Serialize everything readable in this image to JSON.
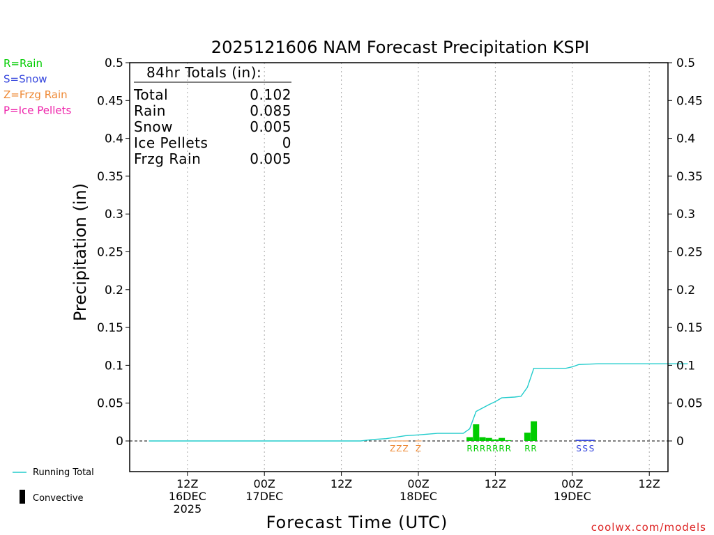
{
  "chart_data": {
    "type": "bar",
    "title": "2025121606 NAM Forecast Precipitation KSPI",
    "xlabel": "Forecast Time (UTC)",
    "ylabel": "Precipitation (in)",
    "ylim": [
      -0.04,
      0.5
    ],
    "y_ticks": [
      {
        "value": 0.5,
        "label": "0.5"
      },
      {
        "value": 0.45,
        "label": "0.45"
      },
      {
        "value": 0.4,
        "label": "0.4"
      },
      {
        "value": 0.35,
        "label": "0.35"
      },
      {
        "value": 0.3,
        "label": "0.3"
      },
      {
        "value": 0.25,
        "label": "0.25"
      },
      {
        "value": 0.2,
        "label": "0.2"
      },
      {
        "value": 0.15,
        "label": "0.15"
      },
      {
        "value": 0.1,
        "label": "0.1"
      },
      {
        "value": 0.05,
        "label": "0.05"
      },
      {
        "value": 0,
        "label": "0"
      }
    ],
    "xlim": [
      -3,
      84
    ],
    "x_ticks": [
      {
        "hour": 6,
        "lines": [
          "12Z",
          "16DEC",
          "2025"
        ]
      },
      {
        "hour": 18,
        "lines": [
          "00Z",
          "17DEC"
        ]
      },
      {
        "hour": 30,
        "lines": [
          "12Z"
        ]
      },
      {
        "hour": 42,
        "lines": [
          "00Z",
          "18DEC"
        ]
      },
      {
        "hour": 54,
        "lines": [
          "12Z"
        ]
      },
      {
        "hour": 66,
        "lines": [
          "00Z",
          "19DEC"
        ]
      },
      {
        "hour": 78,
        "lines": [
          "12Z"
        ]
      }
    ],
    "bars": [
      {
        "hour": 38,
        "value": 0.0005,
        "type": "Z"
      },
      {
        "hour": 39,
        "value": 0.0005,
        "type": "Z"
      },
      {
        "hour": 40,
        "value": 0.0005,
        "type": "Z"
      },
      {
        "hour": 42,
        "value": 0.0005,
        "type": "Z"
      },
      {
        "hour": 50,
        "value": 0.005,
        "type": "R"
      },
      {
        "hour": 51,
        "value": 0.022,
        "type": "R"
      },
      {
        "hour": 52,
        "value": 0.005,
        "type": "R"
      },
      {
        "hour": 53,
        "value": 0.004,
        "type": "R"
      },
      {
        "hour": 54,
        "value": 0.002,
        "type": "R"
      },
      {
        "hour": 55,
        "value": 0.004,
        "type": "R"
      },
      {
        "hour": 56,
        "value": 0.001,
        "type": "R"
      },
      {
        "hour": 59,
        "value": 0.011,
        "type": "R"
      },
      {
        "hour": 60,
        "value": 0.026,
        "type": "R"
      },
      {
        "hour": 67,
        "value": 0.0015,
        "type": "S"
      },
      {
        "hour": 68,
        "value": 0.0015,
        "type": "S"
      },
      {
        "hour": 69,
        "value": 0.0015,
        "type": "S"
      }
    ],
    "running_total": {
      "hours": [
        0,
        33,
        35,
        37,
        40,
        42,
        45,
        49,
        50,
        51,
        53,
        54,
        55,
        57,
        58,
        59,
        60,
        63,
        65,
        66,
        67,
        70,
        75,
        84
      ],
      "values": [
        0,
        0,
        0.002,
        0.003,
        0.007,
        0.008,
        0.01,
        0.01,
        0.016,
        0.039,
        0.048,
        0.052,
        0.057,
        0.058,
        0.059,
        0.071,
        0.096,
        0.096,
        0.096,
        0.098,
        0.101,
        0.102,
        0.102,
        0.102
      ]
    },
    "ptype_markers": [
      {
        "hour": 38,
        "text": "Z",
        "type": "Z"
      },
      {
        "hour": 39,
        "text": "Z",
        "type": "Z"
      },
      {
        "hour": 40,
        "text": "Z",
        "type": "Z"
      },
      {
        "hour": 42,
        "text": "Z",
        "type": "Z"
      },
      {
        "hour": 50,
        "text": "R",
        "type": "R"
      },
      {
        "hour": 51,
        "text": "R",
        "type": "R"
      },
      {
        "hour": 52,
        "text": "R",
        "type": "R"
      },
      {
        "hour": 53,
        "text": "R",
        "type": "R"
      },
      {
        "hour": 54,
        "text": "R",
        "type": "R"
      },
      {
        "hour": 55,
        "text": "R",
        "type": "R"
      },
      {
        "hour": 56,
        "text": "R",
        "type": "R"
      },
      {
        "hour": 59,
        "text": "R",
        "type": "R"
      },
      {
        "hour": 60,
        "text": "R",
        "type": "R"
      },
      {
        "hour": 67,
        "text": "S",
        "type": "S"
      },
      {
        "hour": 68,
        "text": "S",
        "type": "S"
      },
      {
        "hour": 69,
        "text": "S",
        "type": "S"
      }
    ],
    "totals": {
      "header": "84hr Totals (in):",
      "rows": [
        {
          "label": "Total",
          "value": "0.102"
        },
        {
          "label": "Rain",
          "value": "0.085"
        },
        {
          "label": "Snow",
          "value": "0.005"
        },
        {
          "label": "Ice Pellets",
          "value": "0"
        },
        {
          "label": "Frzg Rain",
          "value": "0.005"
        }
      ]
    },
    "ptype_legend": [
      {
        "text": "R=Rain",
        "type": "R"
      },
      {
        "text": "S=Snow",
        "type": "S"
      },
      {
        "text": "Z=Frzg Rain",
        "type": "Z"
      },
      {
        "text": "P=Ice Pellets",
        "type": "P"
      }
    ],
    "bottom_legend": {
      "running_total": "Running Total",
      "convective": "Convective"
    },
    "colors": {
      "R": "#00cc00",
      "S": "#3344dd",
      "Z": "#ee8833",
      "P": "#ee22aa",
      "running_total": "#22cccc",
      "axis": "#000000",
      "grid": "#aaaaaa",
      "credit": "#dd2222"
    }
  },
  "credit": "coolwx.com/models"
}
